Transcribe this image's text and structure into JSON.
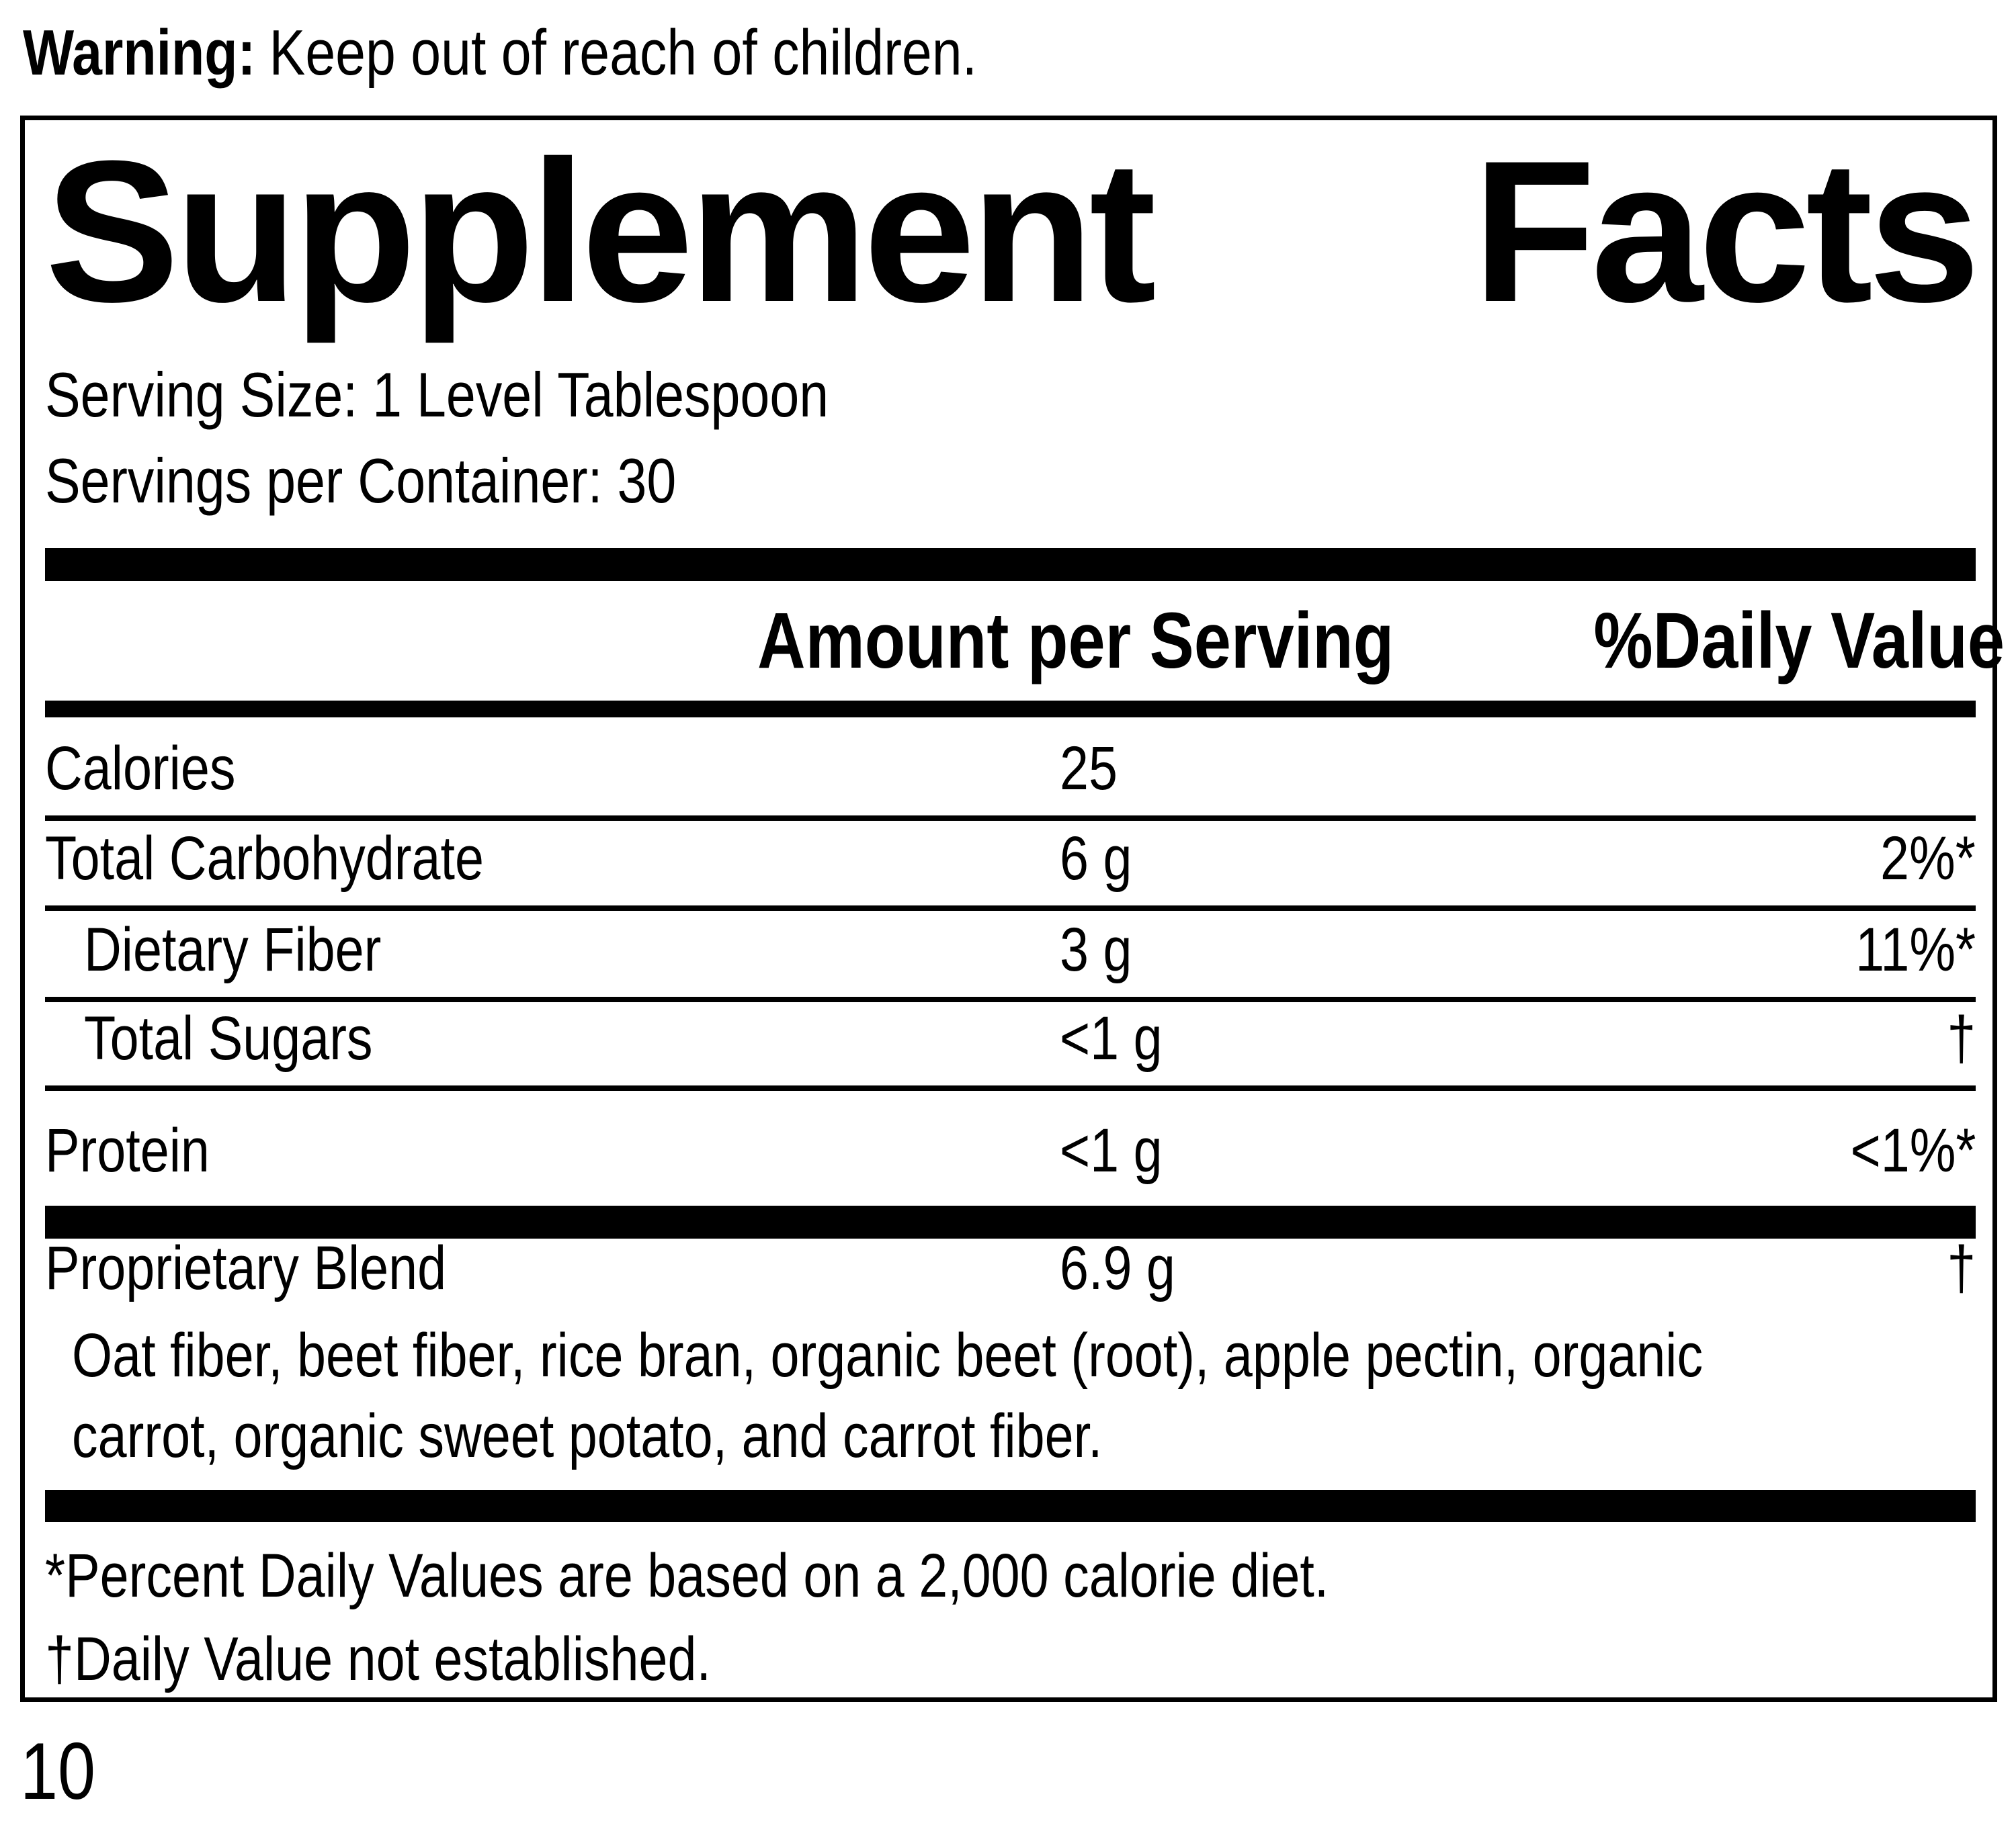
{
  "warning": {
    "label": "Warning:",
    "text": "Keep out of reach of children."
  },
  "panel": {
    "title_left": "Supplement",
    "title_right": "Facts",
    "serving_size": "Serving Size: 1 Level Tablespoon",
    "servings_per_container": "Servings per Container: 30",
    "columns": {
      "amount": "Amount per Serving",
      "daily_value": "%Daily Value"
    },
    "rows": [
      {
        "label": "Calories",
        "amount": "25",
        "dv": ""
      },
      {
        "label": "Total Carbohydrate",
        "amount": "6 g",
        "dv": "2%*"
      },
      {
        "label": "Dietary Fiber",
        "amount": "3 g",
        "dv": "11%*"
      },
      {
        "label": "Total Sugars",
        "amount": "<1 g",
        "dv": "†"
      },
      {
        "label": "Protein",
        "amount": "<1 g",
        "dv": "<1%*"
      }
    ],
    "blend": {
      "label": "Proprietary Blend",
      "amount": "6.9 g",
      "dv": "†",
      "description": "Oat fiber, beet fiber, rice bran, organic beet (root), apple pectin, organic carrot, organic sweet potato, and carrot fiber."
    },
    "footnotes": [
      "*Percent Daily Values are based on a 2,000 calorie diet.",
      "†Daily Value not established."
    ]
  },
  "page_number": "10",
  "colors": {
    "ink": "#000000",
    "background": "#ffffff"
  }
}
